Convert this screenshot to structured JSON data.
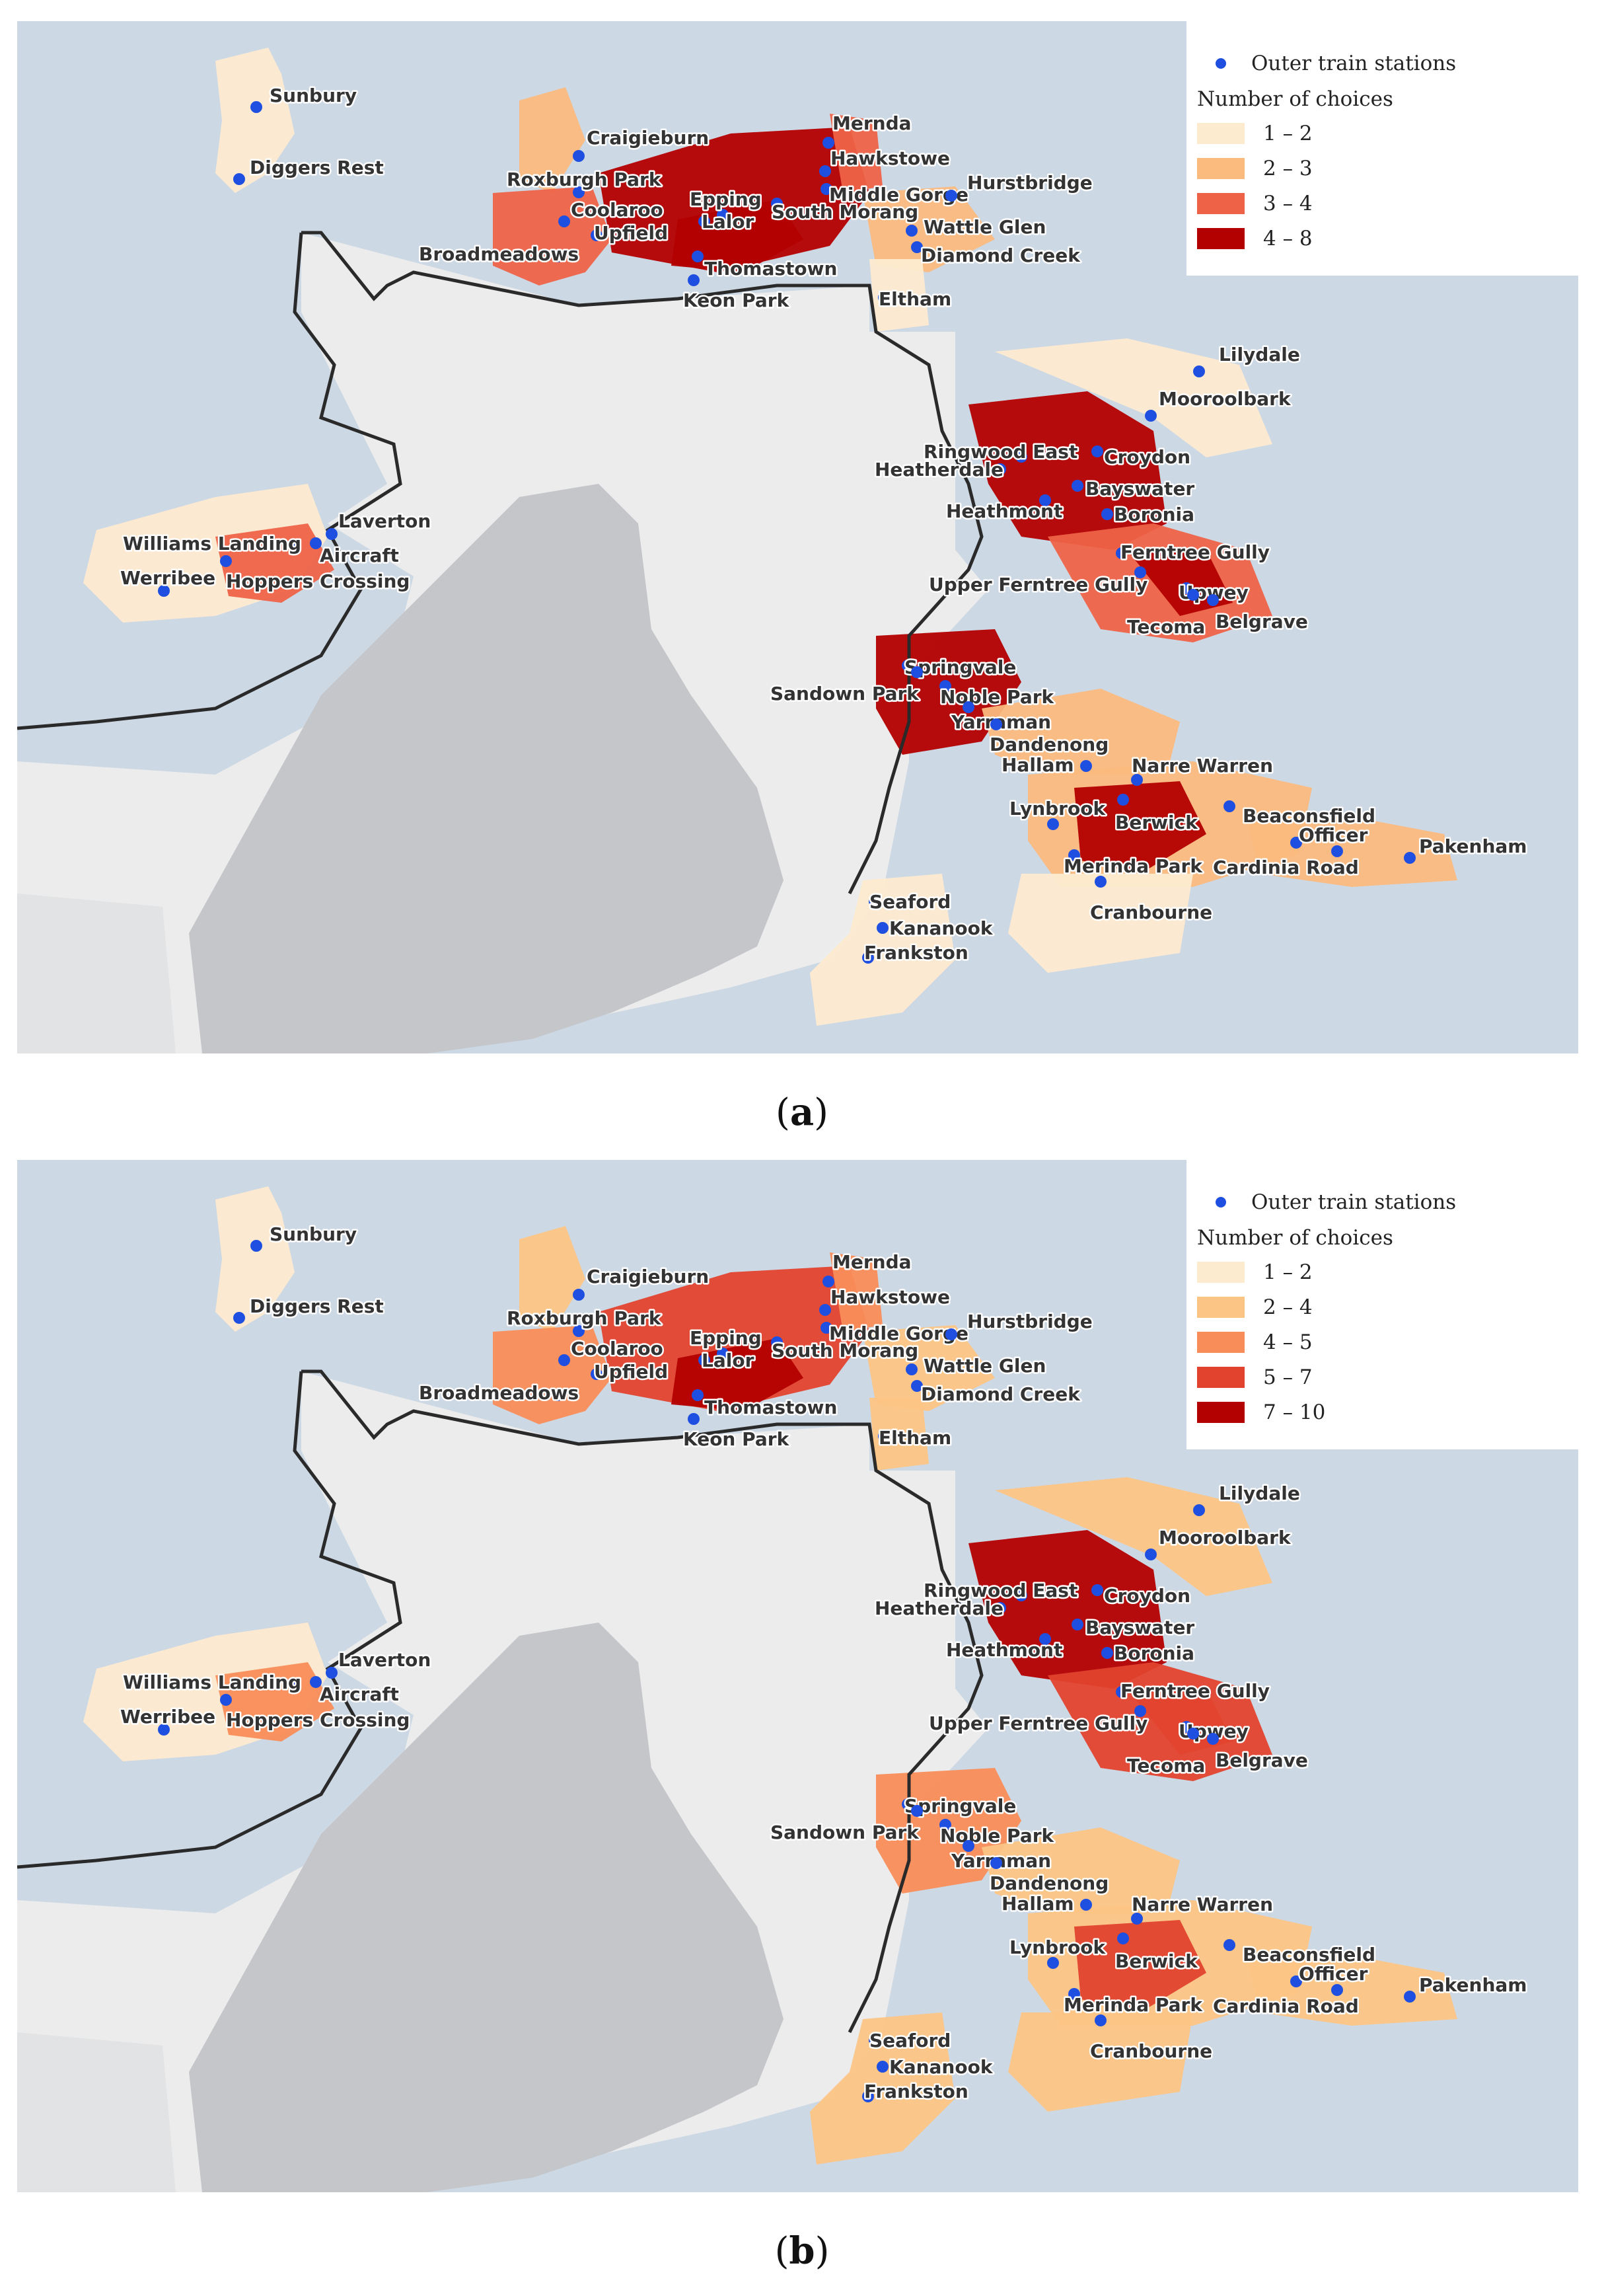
{
  "panels": [
    {
      "caption_letter": "a",
      "legend": {
        "stations_label": "Outer train stations",
        "title": "Number of choices",
        "classes": [
          {
            "label": "1 – 2",
            "color": "#fdebd0"
          },
          {
            "label": "2 – 3",
            "color": "#fbbb7e"
          },
          {
            "label": "3 – 4",
            "color": "#ee6347"
          },
          {
            "label": "4 – 8",
            "color": "#b30000"
          }
        ]
      }
    },
    {
      "caption_letter": "b",
      "legend": {
        "stations_label": "Outer train stations",
        "title": "Number of choices",
        "classes": [
          {
            "label": "1 – 2",
            "color": "#fdebd0"
          },
          {
            "label": "2 – 4",
            "color": "#fcc585"
          },
          {
            "label": "4 – 5",
            "color": "#f98d59"
          },
          {
            "label": "5 – 7",
            "color": "#e2432e"
          },
          {
            "label": "7 – 10",
            "color": "#b30000"
          }
        ]
      }
    }
  ],
  "stations": [
    {
      "name": "Sunbury"
    },
    {
      "name": "Diggers Rest"
    },
    {
      "name": "Craigieburn"
    },
    {
      "name": "Roxburgh Park"
    },
    {
      "name": "Coolaroo"
    },
    {
      "name": "Broadmeadows"
    },
    {
      "name": "Upfield"
    },
    {
      "name": "Mernda"
    },
    {
      "name": "Hawkstowe"
    },
    {
      "name": "Middle Gorge"
    },
    {
      "name": "Hurstbridge"
    },
    {
      "name": "Epping"
    },
    {
      "name": "South Morang"
    },
    {
      "name": "Lalor"
    },
    {
      "name": "Thomastown"
    },
    {
      "name": "Keon Park"
    },
    {
      "name": "Wattle Glen"
    },
    {
      "name": "Diamond Creek"
    },
    {
      "name": "Eltham"
    },
    {
      "name": "Lilydale"
    },
    {
      "name": "Mooroolbark"
    },
    {
      "name": "Ringwood East"
    },
    {
      "name": "Croydon"
    },
    {
      "name": "Heatherdale"
    },
    {
      "name": "Bayswater"
    },
    {
      "name": "Heathmont"
    },
    {
      "name": "Boronia"
    },
    {
      "name": "Ferntree Gully"
    },
    {
      "name": "Upper Ferntree Gully"
    },
    {
      "name": "Upwey"
    },
    {
      "name": "Tecoma"
    },
    {
      "name": "Belgrave"
    },
    {
      "name": "Williams Landing"
    },
    {
      "name": "Laverton"
    },
    {
      "name": "Aircraft"
    },
    {
      "name": "Werribee"
    },
    {
      "name": "Hoppers Crossing"
    },
    {
      "name": "Springvale"
    },
    {
      "name": "Sandown Park"
    },
    {
      "name": "Noble Park"
    },
    {
      "name": "Yarraman"
    },
    {
      "name": "Dandenong"
    },
    {
      "name": "Hallam"
    },
    {
      "name": "Narre Warren"
    },
    {
      "name": "Berwick"
    },
    {
      "name": "Beaconsfield"
    },
    {
      "name": "Lynbrook"
    },
    {
      "name": "Officer"
    },
    {
      "name": "Pakenham"
    },
    {
      "name": "Merinda Park"
    },
    {
      "name": "Cardinia Road"
    },
    {
      "name": "Cranbourne"
    },
    {
      "name": "Seaford"
    },
    {
      "name": "Kananook"
    },
    {
      "name": "Frankston"
    }
  ],
  "colors": {
    "water": "#cdd8e5",
    "metro_land": "#ececec",
    "boundary": "#2a2a2a",
    "bay": "#c4c6ca",
    "station": "#1f4fe0"
  }
}
